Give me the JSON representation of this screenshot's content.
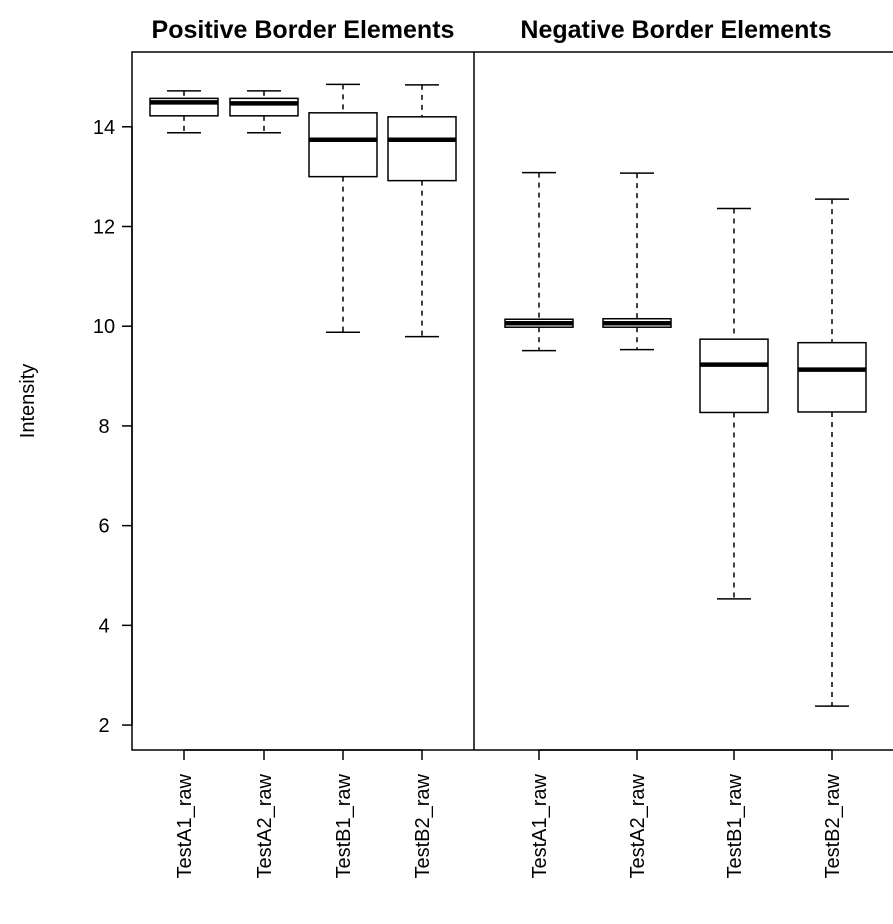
{
  "chart_data": [
    {
      "type": "box",
      "title": "Positive Border Elements",
      "ylabel": "Intensity",
      "ylim": [
        1.5,
        15.5
      ],
      "yticks": [
        2,
        4,
        6,
        8,
        10,
        12,
        14
      ],
      "categories": [
        "TestA1_raw",
        "TestA2_raw",
        "TestB1_raw",
        "TestB2_raw"
      ],
      "boxes": [
        {
          "min": 13.88,
          "q1": 14.22,
          "median": 14.49,
          "q3": 14.57,
          "max": 14.72
        },
        {
          "min": 13.88,
          "q1": 14.22,
          "median": 14.47,
          "q3": 14.57,
          "max": 14.72
        },
        {
          "min": 9.88,
          "q1": 13.0,
          "median": 13.74,
          "q3": 14.28,
          "max": 14.85
        },
        {
          "min": 9.79,
          "q1": 12.92,
          "median": 13.74,
          "q3": 14.2,
          "max": 14.84
        }
      ]
    },
    {
      "type": "box",
      "title": "Negative Border Elements",
      "ylabel": "",
      "ylim": [
        1.5,
        15.5
      ],
      "categories": [
        "TestA1_raw",
        "TestA2_raw",
        "TestB1_raw",
        "TestB2_raw"
      ],
      "boxes": [
        {
          "min": 9.51,
          "q1": 9.98,
          "median": 10.06,
          "q3": 10.14,
          "max": 13.08
        },
        {
          "min": 9.53,
          "q1": 9.98,
          "median": 10.06,
          "q3": 10.15,
          "max": 13.07
        },
        {
          "min": 4.53,
          "q1": 8.27,
          "median": 9.23,
          "q3": 9.74,
          "max": 12.36
        },
        {
          "min": 2.38,
          "q1": 8.28,
          "median": 9.13,
          "q3": 9.67,
          "max": 12.55
        }
      ]
    }
  ]
}
